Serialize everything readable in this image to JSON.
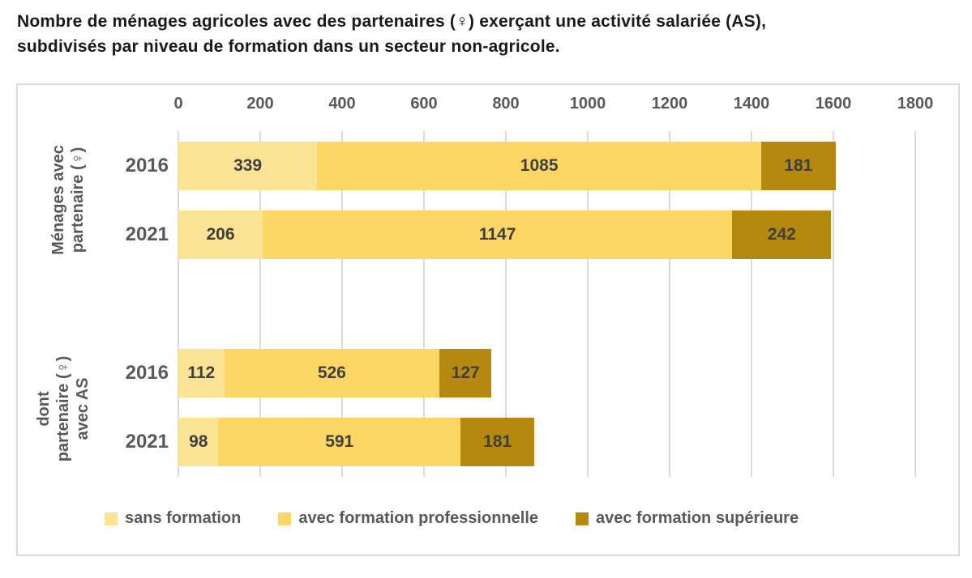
{
  "title": {
    "line1": "Nombre de ménages agricoles avec des partenaires (♀) exerçant une activité salariée (AS),",
    "line2": "subdivisés par niveau de formation dans un secteur non-agricole."
  },
  "colors": {
    "background": "#ffffff",
    "chart_border": "#d9d9d9",
    "gridline": "#dbdbdb",
    "title_text": "#1a1a1a",
    "axis_text": "#595959",
    "value_text": "#3f3f3f"
  },
  "chart_data": {
    "type": "bar",
    "orientation": "horizontal",
    "stacked": true,
    "title": "Nombre de ménages agricoles avec des partenaires (♀) exerçant une activité salariée (AS), subdivisés par niveau de formation dans un secteur non-agricole.",
    "x_axis": {
      "min": 0,
      "max": 1800,
      "tick_step": 200,
      "ticks": [
        0,
        200,
        400,
        600,
        800,
        1000,
        1200,
        1400,
        1600,
        1800
      ],
      "position": "top",
      "grid": true
    },
    "series": [
      {
        "name": "sans formation",
        "key": "sans-formation",
        "color": "#FBE396"
      },
      {
        "name": "avec formation professionnelle",
        "key": "avec-formation-professionnelle",
        "color": "#FCD664"
      },
      {
        "name": "avec formation supérieure",
        "key": "avec-formation-superieure",
        "color": "#B4890D"
      }
    ],
    "y_groups": [
      {
        "label": "Ménages avec partenaire (♀)",
        "label_lines": [
          "Ménages avec",
          "partenaire (♀)"
        ],
        "bars": [
          {
            "year": "2016",
            "slot": 0,
            "values": [
              339,
              1085,
              181
            ]
          },
          {
            "year": "2021",
            "slot": 1,
            "values": [
              206,
              1147,
              242
            ]
          }
        ]
      },
      {
        "label": "dont partenaire (♀) avec AS",
        "label_lines": [
          "dont",
          "partenaire (♀)",
          "avec AS"
        ],
        "bars": [
          {
            "year": "2016",
            "slot": 3,
            "values": [
              112,
              526,
              127
            ]
          },
          {
            "year": "2021",
            "slot": 4,
            "values": [
              98,
              591,
              181
            ]
          }
        ]
      }
    ],
    "legend": [
      "sans formation",
      "avec formation professionnelle",
      "avec formation supérieure"
    ],
    "legend_position": "bottom"
  }
}
